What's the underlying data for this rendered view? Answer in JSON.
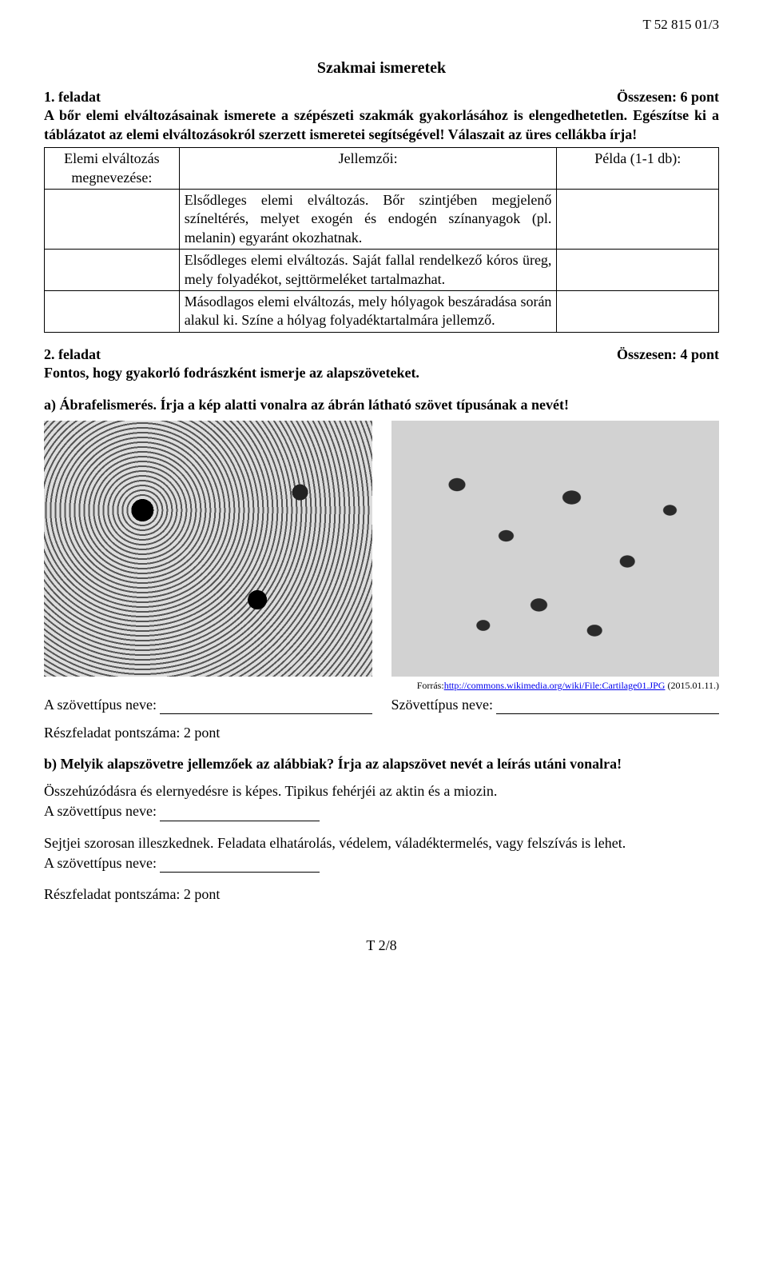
{
  "header": {
    "code": "T 52 815 01/3"
  },
  "section_title": "Szakmai ismeretek",
  "task1": {
    "number": "1. feladat",
    "points": "Összesen: 6 pont",
    "intro_line": "A bőr elemi elváltozásainak ismerete a szépészeti szakmák gyakorlásához is elengedhetetlen. Egészítse ki a táblázatot az elemi elváltozásokról szerzett ismeretei segítségével! Válaszait az üres cellákba írja!",
    "table": {
      "head": {
        "c1": "Elemi elváltozás megnevezése:",
        "c2": "Jellemzői:",
        "c3": "Példa (1-1 db):"
      },
      "rows": [
        {
          "c1": "",
          "c2": "Elsődleges elemi elváltozás. Bőr szintjében megjelenő színeltérés, melyet exogén és endogén színanyagok (pl. melanin) egyaránt okozhatnak.",
          "c3": ""
        },
        {
          "c1": "",
          "c2": "Elsődleges elemi elváltozás. Saját fallal rendelkező kóros üreg, mely folyadékot, sejttörmeléket tartalmazhat.",
          "c3": ""
        },
        {
          "c1": "",
          "c2": "Másodlagos elemi elváltozás, mely hólyagok beszáradása során alakul ki. Színe a hólyag folyadéktartalmára jellemző.",
          "c3": ""
        }
      ]
    }
  },
  "task2": {
    "number": "2. feladat",
    "points": "Összesen: 4 pont",
    "intro": "Fontos, hogy gyakorló fodrászként ismerje az alapszöveteket.",
    "subA": {
      "label": "a)  Ábrafelismerés. Írja a kép alatti vonalra az ábrán látható szövet típusának a nevét!",
      "source_prefix": "Forrás:",
      "source_url": "http://commons.wikimedia.org/wiki/File:Cartilage01.JPG",
      "source_suffix": " (2015.01.11.)",
      "left_label": "A szövettípus neve:",
      "right_label": "Szövettípus neve:",
      "score": "Részfeladat pontszáma: 2 pont"
    },
    "subB": {
      "label": "b)  Melyik alapszövetre jellemzőek az alábbiak? Írja az alapszövet nevét a leírás utáni vonalra!",
      "desc1": "Összehúzódásra és elernyedésre is képes. Tipikus fehérjéi az aktin és a miozin.",
      "answer_label": "A szövettípus neve:",
      "desc2": "Sejtjei szorosan illeszkednek. Feladata elhatárolás, védelem, váladéktermelés, vagy felszívás is lehet.",
      "score": "Részfeladat pontszáma: 2 pont"
    }
  },
  "footer": {
    "page": "T 2/8"
  },
  "colors": {
    "text": "#000000",
    "background": "#ffffff",
    "link": "#0000ee"
  }
}
